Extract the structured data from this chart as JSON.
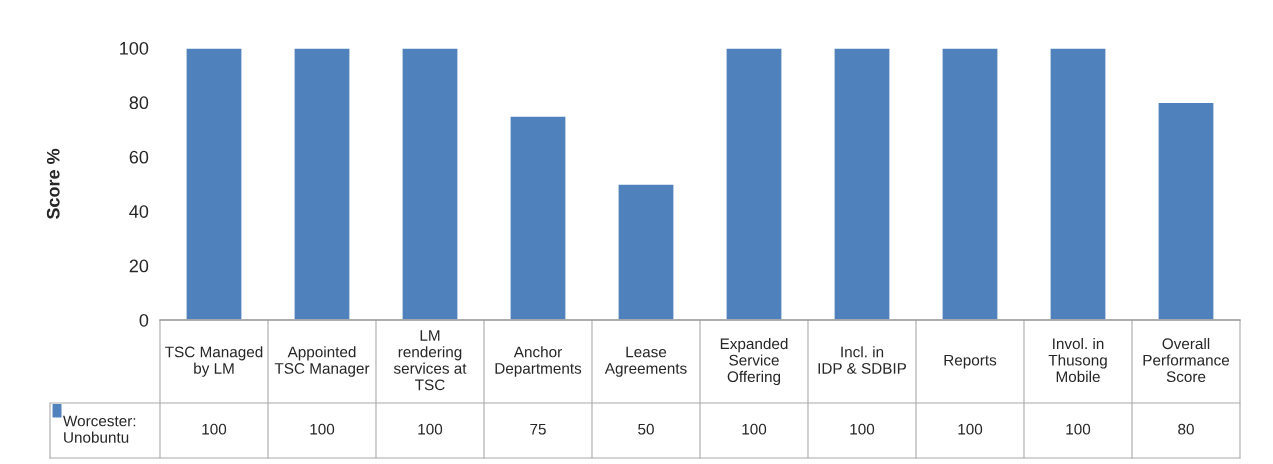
{
  "chart_data": {
    "type": "bar",
    "ylabel": "Score %",
    "categories": [
      "TSC Managed by LM",
      "Appointed TSC Manager",
      "LM rendering services at TSC",
      "Anchor Departments",
      "Lease Agreements",
      "Expanded Service Offering",
      "Incl. in IDP & SDBIP",
      "Reports",
      "Invol. in Thusong Mobile",
      "Overall Performance Score"
    ],
    "series": [
      {
        "name": "Worcester: Unobuntu",
        "color": "#4f81bd",
        "values": [
          100,
          100,
          100,
          75,
          50,
          100,
          100,
          100,
          100,
          80
        ]
      }
    ],
    "ylim": [
      0,
      100
    ],
    "yticks": [
      0,
      20,
      40,
      60,
      80,
      100
    ],
    "grid": false,
    "data_labels": true
  }
}
